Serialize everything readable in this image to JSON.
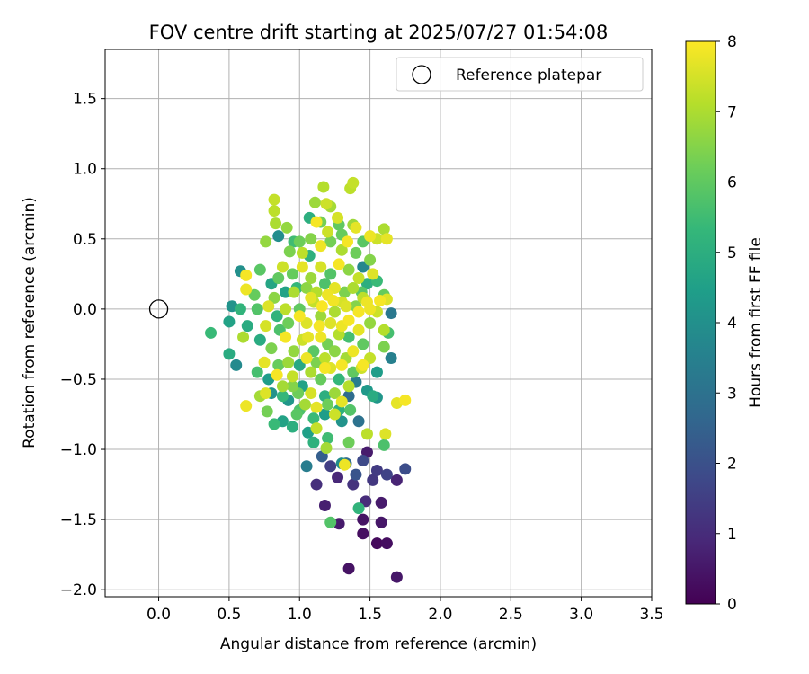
{
  "chart_data": {
    "type": "scatter",
    "title": "FOV centre drift starting at 2025/07/27 01:54:08",
    "xlabel": "Angular distance from reference (arcmin)",
    "ylabel": "Rotation from reference (arcmin)",
    "xlim": [
      -0.38,
      3.5
    ],
    "ylim": [
      -2.05,
      1.85
    ],
    "xticks": [
      0.0,
      0.5,
      1.0,
      1.5,
      2.0,
      2.5,
      3.0,
      3.5
    ],
    "xtick_labels": [
      "0.0",
      "0.5",
      "1.0",
      "1.5",
      "2.0",
      "2.5",
      "3.0",
      "3.5"
    ],
    "yticks": [
      -2.0,
      -1.5,
      -1.0,
      -0.5,
      0.0,
      0.5,
      1.0,
      1.5
    ],
    "ytick_labels": [
      "−2.0",
      "−1.5",
      "−1.0",
      "−0.5",
      "0.0",
      "0.5",
      "1.0",
      "1.5"
    ],
    "grid": true,
    "legend": {
      "position": "upper-right",
      "entries": [
        "Reference platepar"
      ]
    },
    "reference_point": {
      "x": 0.0,
      "y": 0.0
    },
    "colorbar": {
      "label": "Hours from first FF file",
      "colormap": "viridis",
      "min": 0,
      "max": 8,
      "ticks": [
        0,
        1,
        2,
        3,
        4,
        5,
        6,
        7,
        8
      ],
      "tick_labels": [
        "0",
        "1",
        "2",
        "3",
        "4",
        "5",
        "6",
        "7",
        "8"
      ]
    },
    "colormap_stops": [
      "#440154",
      "#482878",
      "#3e4989",
      "#31688e",
      "#26828e",
      "#1f9e89",
      "#35b779",
      "#6ece58",
      "#b5de2b",
      "#fde725"
    ],
    "points": [
      [
        1.35,
        -1.85,
        0.4
      ],
      [
        1.69,
        -1.91,
        0.5
      ],
      [
        1.45,
        -1.6,
        0.3
      ],
      [
        1.55,
        -1.67,
        0.2
      ],
      [
        1.62,
        -1.67,
        0.3
      ],
      [
        1.28,
        -1.53,
        0.6
      ],
      [
        1.45,
        -1.5,
        0.4
      ],
      [
        1.58,
        -1.52,
        0.5
      ],
      [
        1.18,
        -1.4,
        0.7
      ],
      [
        1.47,
        -1.37,
        1.0
      ],
      [
        1.58,
        -1.38,
        0.6
      ],
      [
        1.38,
        -1.25,
        1.2
      ],
      [
        1.12,
        -1.25,
        1.1
      ],
      [
        1.27,
        -1.2,
        0.9
      ],
      [
        1.52,
        -1.22,
        1.3
      ],
      [
        1.69,
        -1.22,
        0.8
      ],
      [
        1.62,
        -1.18,
        1.6
      ],
      [
        1.75,
        -1.14,
        1.9
      ],
      [
        1.05,
        -1.12,
        3.4
      ],
      [
        1.33,
        -1.1,
        2.8
      ],
      [
        1.48,
        -1.02,
        0.6
      ],
      [
        1.55,
        -1.15,
        1.4
      ],
      [
        1.4,
        -1.18,
        2.1
      ],
      [
        1.22,
        -1.12,
        1.5
      ],
      [
        1.16,
        -1.05,
        2.4
      ],
      [
        1.3,
        -1.1,
        3.9
      ],
      [
        1.45,
        -1.08,
        1.8
      ],
      [
        1.42,
        -1.42,
        5.2
      ],
      [
        1.22,
        -1.52,
        5.8
      ],
      [
        1.19,
        -0.99,
        6.9
      ],
      [
        1.32,
        -1.11,
        7.8
      ],
      [
        1.1,
        -0.95,
        5.1
      ],
      [
        1.06,
        -0.88,
        4.5
      ],
      [
        1.2,
        -0.92,
        5.5
      ],
      [
        1.35,
        -0.95,
        6.2
      ],
      [
        1.48,
        -0.89,
        7.2
      ],
      [
        1.6,
        -0.97,
        5.7
      ],
      [
        1.61,
        -0.89,
        7.6
      ],
      [
        1.75,
        -0.65,
        7.9
      ],
      [
        1.69,
        -0.67,
        7.7
      ],
      [
        0.95,
        -0.84,
        5.0
      ],
      [
        0.88,
        -0.8,
        4.6
      ],
      [
        0.82,
        -0.82,
        5.4
      ],
      [
        0.77,
        -0.73,
        6.3
      ],
      [
        0.8,
        -0.6,
        4.1
      ],
      [
        0.72,
        -0.62,
        6.9
      ],
      [
        0.76,
        -0.6,
        7.6
      ],
      [
        0.7,
        -0.45,
        5.6
      ],
      [
        0.62,
        -0.69,
        7.8
      ],
      [
        0.55,
        -0.4,
        3.8
      ],
      [
        0.5,
        -0.32,
        4.9
      ],
      [
        0.37,
        -0.17,
        5.4
      ],
      [
        0.5,
        -0.09,
        4.6
      ],
      [
        0.52,
        0.02,
        4.1
      ],
      [
        0.58,
        0.0,
        5.2
      ],
      [
        0.6,
        -0.2,
        7.0
      ],
      [
        0.63,
        -0.12,
        4.9
      ],
      [
        0.62,
        0.24,
        7.9
      ],
      [
        0.58,
        0.27,
        4.0
      ],
      [
        0.62,
        0.14,
        7.8
      ],
      [
        0.68,
        0.1,
        6.1
      ],
      [
        0.72,
        0.28,
        5.9
      ],
      [
        0.8,
        0.18,
        4.7
      ],
      [
        0.85,
        0.22,
        6.0
      ],
      [
        0.76,
        0.48,
        6.7
      ],
      [
        0.83,
        0.61,
        7.0
      ],
      [
        0.82,
        0.7,
        7.2
      ],
      [
        0.82,
        0.78,
        7.3
      ],
      [
        0.85,
        0.52,
        3.9
      ],
      [
        0.91,
        0.58,
        6.7
      ],
      [
        0.93,
        0.41,
        6.4
      ],
      [
        1.0,
        0.48,
        6.2
      ],
      [
        1.07,
        0.38,
        5.1
      ],
      [
        1.07,
        0.65,
        5.0
      ],
      [
        1.11,
        0.76,
        6.8
      ],
      [
        1.17,
        0.87,
        7.1
      ],
      [
        1.15,
        0.62,
        6.3
      ],
      [
        1.12,
        0.62,
        7.9
      ],
      [
        1.19,
        0.75,
        7.4
      ],
      [
        1.22,
        0.73,
        6.9
      ],
      [
        1.27,
        0.65,
        7.5
      ],
      [
        1.3,
        0.53,
        6.1
      ],
      [
        1.36,
        0.86,
        7.2
      ],
      [
        1.38,
        0.9,
        7.3
      ],
      [
        1.38,
        0.6,
        6.8
      ],
      [
        1.4,
        0.58,
        7.7
      ],
      [
        1.45,
        0.48,
        5.9
      ],
      [
        1.5,
        0.52,
        7.8
      ],
      [
        1.55,
        0.5,
        7.4
      ],
      [
        1.6,
        0.57,
        7.0
      ],
      [
        1.62,
        0.5,
        7.7
      ],
      [
        1.45,
        0.3,
        3.7
      ],
      [
        1.5,
        0.35,
        6.5
      ],
      [
        1.55,
        0.2,
        5.4
      ],
      [
        1.6,
        0.1,
        6.1
      ],
      [
        1.57,
        0.06,
        7.9
      ],
      [
        1.62,
        0.07,
        7.6
      ],
      [
        1.65,
        -0.03,
        3.2
      ],
      [
        1.6,
        -0.15,
        7.1
      ],
      [
        1.63,
        -0.17,
        5.6
      ],
      [
        1.6,
        -0.27,
        6.4
      ],
      [
        1.65,
        -0.35,
        3.5
      ],
      [
        1.55,
        -0.45,
        4.4
      ],
      [
        1.45,
        -0.4,
        7.9
      ],
      [
        1.4,
        -0.52,
        3.4
      ],
      [
        1.35,
        -0.62,
        2.8
      ],
      [
        1.48,
        -0.58,
        4.3
      ],
      [
        1.52,
        -0.62,
        4.9
      ],
      [
        1.55,
        -0.63,
        4.2
      ],
      [
        1.42,
        -0.8,
        3.0
      ],
      [
        1.3,
        -0.66,
        7.7
      ],
      [
        1.25,
        -0.75,
        7.4
      ],
      [
        1.18,
        -0.75,
        4.4
      ],
      [
        1.3,
        -0.8,
        4.1
      ],
      [
        1.36,
        -0.72,
        5.8
      ],
      [
        1.1,
        -0.78,
        5.4
      ],
      [
        1.0,
        -0.72,
        5.7
      ],
      [
        0.92,
        -0.65,
        4.2
      ],
      [
        0.99,
        -0.6,
        6.2
      ],
      [
        0.88,
        -0.55,
        6.9
      ],
      [
        0.95,
        -0.48,
        7.3
      ],
      [
        0.85,
        -0.4,
        6.1
      ],
      [
        0.75,
        -0.38,
        7.7
      ],
      [
        0.8,
        -0.28,
        6.4
      ],
      [
        0.72,
        -0.22,
        4.9
      ],
      [
        0.76,
        -0.12,
        7.5
      ],
      [
        0.84,
        -0.05,
        5.2
      ],
      [
        0.9,
        0.0,
        7.2
      ],
      [
        0.82,
        0.08,
        6.6
      ],
      [
        0.96,
        0.12,
        7.0
      ],
      [
        1.0,
        0.0,
        6.0
      ],
      [
        1.05,
        -0.1,
        7.6
      ],
      [
        1.1,
        0.05,
        7.3
      ],
      [
        1.15,
        -0.05,
        6.8
      ],
      [
        1.2,
        0.1,
        7.8
      ],
      [
        1.25,
        -0.02,
        7.0
      ],
      [
        1.3,
        0.05,
        7.5
      ],
      [
        1.35,
        -0.08,
        7.9
      ],
      [
        1.4,
        0.02,
        6.5
      ],
      [
        1.45,
        0.08,
        7.2
      ],
      [
        1.5,
        0.0,
        7.8
      ],
      [
        1.55,
        -0.02,
        7.4
      ],
      [
        1.5,
        -0.1,
        6.7
      ],
      [
        1.42,
        -0.15,
        7.7
      ],
      [
        1.35,
        -0.2,
        5.6
      ],
      [
        1.28,
        -0.18,
        7.1
      ],
      [
        1.2,
        -0.25,
        6.3
      ],
      [
        1.15,
        -0.2,
        7.8
      ],
      [
        1.1,
        -0.3,
        5.9
      ],
      [
        1.02,
        -0.22,
        7.4
      ],
      [
        0.96,
        -0.3,
        6.7
      ],
      [
        0.9,
        -0.2,
        7.9
      ],
      [
        0.92,
        -0.1,
        6.2
      ],
      [
        1.0,
        -0.4,
        4.8
      ],
      [
        1.08,
        -0.45,
        7.0
      ],
      [
        1.15,
        -0.5,
        6.1
      ],
      [
        1.22,
        -0.42,
        7.6
      ],
      [
        1.28,
        -0.5,
        5.3
      ],
      [
        1.33,
        -0.35,
        6.9
      ],
      [
        1.38,
        -0.3,
        7.8
      ],
      [
        1.45,
        -0.25,
        6.0
      ],
      [
        1.5,
        -0.35,
        7.3
      ],
      [
        1.25,
        -0.6,
        6.8
      ],
      [
        1.18,
        -0.62,
        5.0
      ],
      [
        1.08,
        -0.6,
        7.5
      ],
      [
        1.02,
        -0.55,
        4.6
      ],
      [
        0.95,
        -0.55,
        6.5
      ],
      [
        0.88,
        -0.62,
        5.3
      ],
      [
        0.84,
        -0.47,
        7.9
      ],
      [
        0.78,
        -0.5,
        4.4
      ],
      [
        0.88,
        0.3,
        7.4
      ],
      [
        0.95,
        0.25,
        6.1
      ],
      [
        1.02,
        0.3,
        7.7
      ],
      [
        1.08,
        0.22,
        6.8
      ],
      [
        1.15,
        0.3,
        7.5
      ],
      [
        1.22,
        0.25,
        5.8
      ],
      [
        1.28,
        0.32,
        7.9
      ],
      [
        1.35,
        0.28,
        6.6
      ],
      [
        1.42,
        0.22,
        7.3
      ],
      [
        1.48,
        0.18,
        5.0
      ],
      [
        1.52,
        0.25,
        7.6
      ],
      [
        1.3,
        0.42,
        7.0
      ],
      [
        1.22,
        0.48,
        6.3
      ],
      [
        1.15,
        0.45,
        7.8
      ],
      [
        1.08,
        0.5,
        6.5
      ],
      [
        1.02,
        0.4,
        7.2
      ],
      [
        0.96,
        0.48,
        5.5
      ],
      [
        1.2,
        0.55,
        7.4
      ],
      [
        1.28,
        0.6,
        6.0
      ],
      [
        1.34,
        0.48,
        7.9
      ],
      [
        1.4,
        0.4,
        6.2
      ],
      [
        0.98,
        0.15,
        5.3
      ],
      [
        1.05,
        0.15,
        6.6
      ],
      [
        1.12,
        0.12,
        7.1
      ],
      [
        1.18,
        0.18,
        5.7
      ],
      [
        1.25,
        0.15,
        7.7
      ],
      [
        1.32,
        0.12,
        6.4
      ],
      [
        1.38,
        0.15,
        7.0
      ],
      [
        1.44,
        0.12,
        5.9
      ],
      [
        0.9,
        0.12,
        4.6
      ],
      [
        0.86,
        -0.15,
        5.7
      ],
      [
        0.92,
        -0.38,
        6.8
      ],
      [
        1.05,
        -0.35,
        7.8
      ],
      [
        1.12,
        -0.38,
        6.4
      ],
      [
        1.18,
        -0.35,
        7.2
      ],
      [
        1.25,
        -0.3,
        6.6
      ],
      [
        1.3,
        -0.4,
        7.9
      ],
      [
        1.38,
        -0.45,
        6.0
      ],
      [
        1.44,
        -0.42,
        7.4
      ],
      [
        1.04,
        -0.68,
        6.9
      ],
      [
        1.12,
        -0.7,
        7.7
      ],
      [
        1.2,
        -0.68,
        6.2
      ],
      [
        1.28,
        -0.72,
        5.1
      ],
      [
        1.35,
        -0.55,
        7.1
      ],
      [
        0.98,
        -0.75,
        5.9
      ],
      [
        1.12,
        -0.85,
        7.3
      ],
      [
        1.0,
        -0.05,
        7.9
      ],
      [
        1.08,
        0.08,
        7.7
      ],
      [
        1.16,
        0.02,
        7.95
      ],
      [
        1.24,
        0.06,
        7.85
      ],
      [
        1.33,
        0.02,
        7.6
      ],
      [
        1.42,
        -0.02,
        7.9
      ],
      [
        1.48,
        0.05,
        7.8
      ],
      [
        1.06,
        -0.2,
        7.7
      ],
      [
        1.14,
        -0.12,
        7.9
      ],
      [
        1.22,
        -0.1,
        7.6
      ],
      [
        1.3,
        -0.12,
        7.8
      ],
      [
        1.18,
        -0.42,
        7.9
      ],
      [
        0.78,
        0.02,
        7.6
      ],
      [
        0.7,
        0.0,
        5.8
      ]
    ]
  }
}
